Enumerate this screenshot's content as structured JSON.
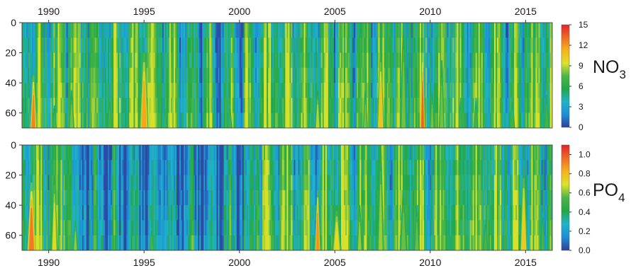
{
  "chart_data": [
    {
      "type": "heatmap",
      "variable_label": "NO",
      "variable_subscript": "3",
      "x_ticks": [
        "1990",
        "1995",
        "2000",
        "2005",
        "2010",
        "2015"
      ],
      "x_tick_values": [
        1990,
        1995,
        2000,
        2005,
        2010,
        2015
      ],
      "xlim": [
        1988.6,
        2016.4
      ],
      "y_ticks": [
        "0",
        "20",
        "40",
        "60"
      ],
      "y_tick_values": [
        0,
        20,
        40,
        60
      ],
      "ylim": [
        0,
        70
      ],
      "y_inverted": true,
      "x_axis_position": "top",
      "colorbar_ticks": [
        "0",
        "3",
        "6",
        "9",
        "12",
        "15"
      ],
      "colorbar_tick_values": [
        0,
        3,
        6,
        9,
        12,
        15
      ],
      "colorbar_range": [
        0,
        15
      ],
      "colormap": [
        "#2f3f9a",
        "#1d8fd6",
        "#1fb4c8",
        "#22a847",
        "#4cb648",
        "#dde22a",
        "#f6b31c",
        "#f06a27",
        "#e52226"
      ],
      "features": [
        {
          "year": 1989.2,
          "width": 0.35,
          "top": 35,
          "value": 14
        },
        {
          "year": 1990.3,
          "width": 0.25,
          "top": 55,
          "value": 8
        },
        {
          "year": 1991.2,
          "width": 0.3,
          "top": 45,
          "value": 9
        },
        {
          "year": 1993.2,
          "width": 0.25,
          "top": 50,
          "value": 8
        },
        {
          "year": 1995.0,
          "width": 0.45,
          "top": 20,
          "value": 13
        },
        {
          "year": 1996.1,
          "width": 0.2,
          "top": 55,
          "value": 8
        },
        {
          "year": 1999.5,
          "width": 0.25,
          "top": 55,
          "value": 8
        },
        {
          "year": 2004.1,
          "width": 0.3,
          "top": 45,
          "value": 10
        },
        {
          "year": 2006.6,
          "width": 0.25,
          "top": 45,
          "value": 9
        },
        {
          "year": 2007.4,
          "width": 0.35,
          "top": 20,
          "value": 12
        },
        {
          "year": 2008.6,
          "width": 0.35,
          "top": 0,
          "value": 9
        },
        {
          "year": 2009.6,
          "width": 0.25,
          "top": 20,
          "value": 15
        },
        {
          "year": 2010.1,
          "width": 0.25,
          "top": 45,
          "value": 9
        },
        {
          "year": 2010.6,
          "width": 0.3,
          "top": 25,
          "value": 9
        },
        {
          "year": 2011.6,
          "width": 0.2,
          "top": 50,
          "value": 8
        },
        {
          "year": 2012.4,
          "width": 0.25,
          "top": 50,
          "value": 8
        },
        {
          "year": 2014.3,
          "width": 0.3,
          "top": 50,
          "value": 8
        },
        {
          "year": 2016.1,
          "width": 0.3,
          "top": 45,
          "value": 8
        }
      ]
    },
    {
      "type": "heatmap",
      "variable_label": "PO",
      "variable_subscript": "4",
      "x_ticks": [
        "1990",
        "1995",
        "2000",
        "2005",
        "2010",
        "2015"
      ],
      "x_tick_values": [
        1990,
        1995,
        2000,
        2005,
        2010,
        2015
      ],
      "xlim": [
        1988.6,
        2016.4
      ],
      "y_ticks": [
        "0",
        "20",
        "40",
        "60"
      ],
      "y_tick_values": [
        0,
        20,
        40,
        60
      ],
      "ylim": [
        0,
        70
      ],
      "y_inverted": true,
      "x_axis_position": "bottom",
      "colorbar_ticks": [
        "0.0",
        "0.2",
        "0.4",
        "0.6",
        "0.8",
        "1.0"
      ],
      "colorbar_tick_values": [
        0,
        0.2,
        0.4,
        0.6,
        0.8,
        1.0
      ],
      "colorbar_range": [
        0,
        1.1
      ],
      "colormap": [
        "#2f3f9a",
        "#1d8fd6",
        "#1fb4c8",
        "#22a847",
        "#4cb648",
        "#dde22a",
        "#f6b31c",
        "#f06a27",
        "#e52226"
      ],
      "features": [
        {
          "year": 1989.1,
          "width": 0.45,
          "top": 25,
          "value": 1.05
        },
        {
          "year": 1990.3,
          "width": 0.35,
          "top": 20,
          "value": 0.8
        },
        {
          "year": 1991.4,
          "width": 0.25,
          "top": 50,
          "value": 0.7
        },
        {
          "year": 1995.4,
          "width": 0.25,
          "top": 55,
          "value": 0.6
        },
        {
          "year": 2004.1,
          "width": 0.3,
          "top": 30,
          "value": 1.0
        },
        {
          "year": 2005.1,
          "width": 0.5,
          "top": 40,
          "value": 0.8
        },
        {
          "year": 2006.3,
          "width": 0.3,
          "top": 40,
          "value": 0.7
        },
        {
          "year": 2007.4,
          "width": 0.35,
          "top": 0,
          "value": 0.7
        },
        {
          "year": 2008.6,
          "width": 0.4,
          "top": 30,
          "value": 0.65
        },
        {
          "year": 2009.3,
          "width": 0.3,
          "top": 40,
          "value": 0.65
        },
        {
          "year": 2012.9,
          "width": 0.3,
          "top": 50,
          "value": 0.6
        },
        {
          "year": 2014.9,
          "width": 0.4,
          "top": 15,
          "value": 0.85
        },
        {
          "year": 2015.9,
          "width": 0.25,
          "top": 45,
          "value": 0.6
        }
      ]
    }
  ]
}
